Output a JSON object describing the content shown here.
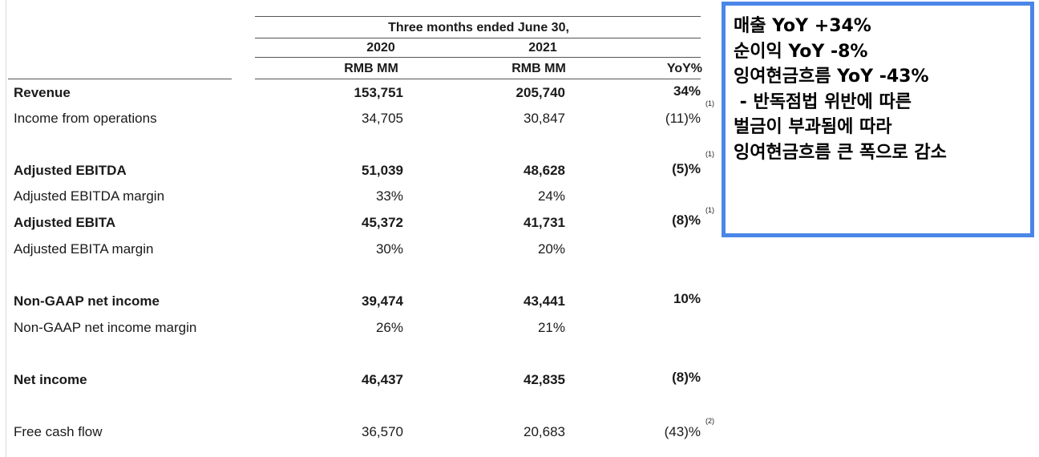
{
  "table": {
    "period_header": "Three months ended June 30,",
    "years": [
      "2020",
      "2021"
    ],
    "units": [
      "RMB MM",
      "RMB MM"
    ],
    "yoy_header": "YoY%",
    "rows": [
      {
        "label": "Revenue",
        "v2020": "153,751",
        "v2021": "205,740",
        "yoy": "34%",
        "note": "(1)",
        "bold": true
      },
      {
        "label": "Income from operations",
        "v2020": "34,705",
        "v2021": "30,847",
        "yoy": "(11)%",
        "note": "",
        "bold": false
      },
      {
        "label": "Adjusted EBITDA",
        "v2020": "51,039",
        "v2021": "48,628",
        "yoy": "(5)%",
        "note": "(1)",
        "bold": true
      },
      {
        "label": "Adjusted EBITDA margin",
        "v2020": "33%",
        "v2021": "24%",
        "yoy": "",
        "note": "",
        "bold": false
      },
      {
        "label": "Adjusted EBITA",
        "v2020": "45,372",
        "v2021": "41,731",
        "yoy": "(8)%",
        "note": "(1)",
        "bold": true
      },
      {
        "label": "Adjusted EBITA margin",
        "v2020": "30%",
        "v2021": "20%",
        "yoy": "",
        "note": "",
        "bold": false
      },
      {
        "label": "Non-GAAP net income",
        "v2020": "39,474",
        "v2021": "43,441",
        "yoy": "10%",
        "note": "",
        "bold": true
      },
      {
        "label": "Non-GAAP net income margin",
        "v2020": "26%",
        "v2021": "21%",
        "yoy": "",
        "note": "",
        "bold": false
      },
      {
        "label": "Net income",
        "v2020": "46,437",
        "v2021": "42,835",
        "yoy": "(8)%",
        "note": "",
        "bold": true
      },
      {
        "label": "Free cash flow",
        "v2020": "36,570",
        "v2021": "20,683",
        "yoy": "(43)%",
        "note": "(2)",
        "bold": false
      }
    ]
  },
  "callout": {
    "lines": [
      "매출 YoY +34%",
      "순이익 YoY -8%",
      "잉여현금흐름 YoY -43%",
      " - 반독점법 위반에 따른",
      "벌금이 부과됨에 따라",
      "잉여현금흐름 큰 폭으로 감소"
    ]
  },
  "colors": {
    "callout_border": "#4a86e8",
    "text": "#1a1a1a"
  }
}
